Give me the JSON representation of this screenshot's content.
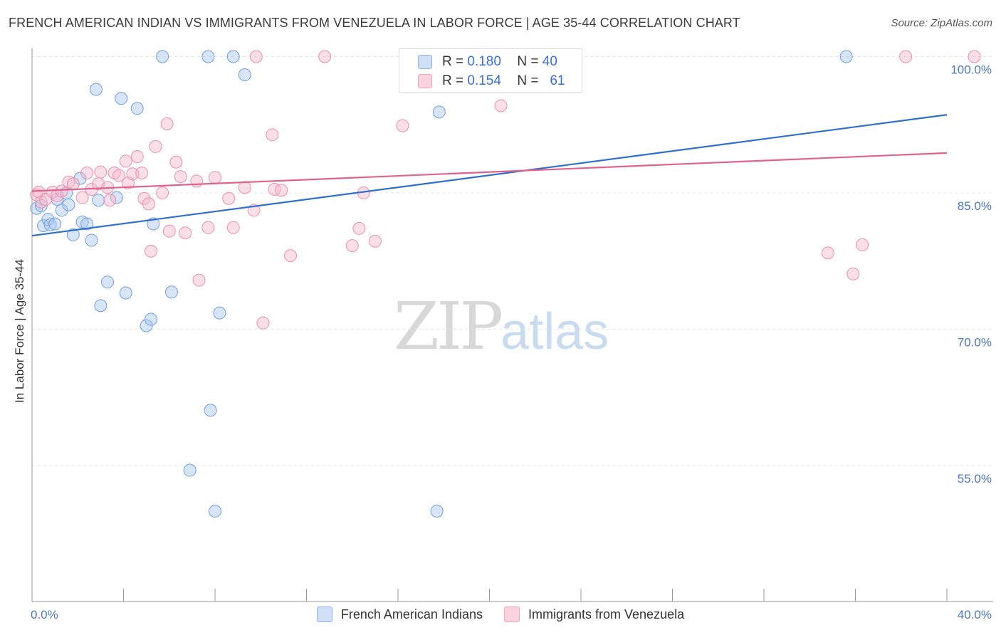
{
  "title": "FRENCH AMERICAN INDIAN VS IMMIGRANTS FROM VENEZUELA IN LABOR FORCE | AGE 35-44 CORRELATION CHART",
  "source": "Source: ZipAtlas.com",
  "watermark": {
    "zip": "ZIP",
    "atlas": "atlas"
  },
  "legend": {
    "rows": [
      {
        "r_label": "R =",
        "r_value": "0.180",
        "n_label": "N =",
        "n_value": "40",
        "color": "#a9c6ee"
      },
      {
        "r_label": "R =",
        "r_value": "0.154",
        "n_label": "N =",
        "n_value": "61",
        "color": "#f6b8cb"
      }
    ]
  },
  "chart_data": {
    "type": "scatter",
    "title": "FRENCH AMERICAN INDIAN VS IMMIGRANTS FROM VENEZUELA IN LABOR FORCE | AGE 35-44 CORRELATION CHART",
    "xlabel": "",
    "ylabel": "In Labor Force | Age 35-44",
    "xlim": [
      0,
      40
    ],
    "ylim": [
      40,
      101.5
    ],
    "x_tick_labels": [
      "0.0%",
      "40.0%"
    ],
    "y_ticks": [
      55,
      70,
      85,
      100
    ],
    "y_tick_labels": [
      "55.0%",
      "70.0%",
      "85.0%",
      "100.0%"
    ],
    "grid": true,
    "series": [
      {
        "name": "French American Indians",
        "color": "#a9c6ee",
        "stroke": "#6f9ee0",
        "line_color": "#2f6fd1",
        "trend": [
          [
            0,
            80.3
          ],
          [
            40,
            93.6
          ]
        ],
        "points": [
          [
            0.2,
            83.3
          ],
          [
            0.4,
            83.6
          ],
          [
            0.5,
            81.4
          ],
          [
            0.7,
            82.1
          ],
          [
            0.8,
            81.5
          ],
          [
            1.0,
            81.6
          ],
          [
            1.1,
            84.3
          ],
          [
            1.3,
            83.1
          ],
          [
            1.5,
            85.0
          ],
          [
            1.6,
            83.7
          ],
          [
            1.8,
            80.4
          ],
          [
            2.1,
            86.6
          ],
          [
            2.2,
            81.8
          ],
          [
            2.4,
            81.6
          ],
          [
            2.6,
            79.8
          ],
          [
            2.8,
            96.4
          ],
          [
            2.9,
            84.2
          ],
          [
            3.0,
            72.6
          ],
          [
            3.3,
            75.2
          ],
          [
            3.7,
            84.5
          ],
          [
            3.9,
            95.4
          ],
          [
            4.1,
            74.0
          ],
          [
            4.6,
            94.3
          ],
          [
            5.0,
            70.4
          ],
          [
            5.2,
            71.1
          ],
          [
            5.3,
            81.6
          ],
          [
            5.7,
            100.0
          ],
          [
            6.1,
            74.1
          ],
          [
            6.9,
            54.5
          ],
          [
            7.7,
            100.0
          ],
          [
            7.8,
            61.1
          ],
          [
            8.0,
            50.0
          ],
          [
            8.2,
            71.8
          ],
          [
            8.8,
            100.0
          ],
          [
            9.3,
            98.0
          ],
          [
            16.9,
            100.0
          ],
          [
            17.8,
            93.9
          ],
          [
            17.7,
            50.0
          ],
          [
            19.5,
            97.4
          ],
          [
            35.6,
            100.0
          ]
        ]
      },
      {
        "name": "Immigrants from Venezuela",
        "color": "#f6b8cb",
        "stroke": "#ea8fae",
        "line_color": "#e0628e",
        "trend": [
          [
            0,
            85.2
          ],
          [
            40,
            89.4
          ]
        ],
        "points": [
          [
            0.2,
            84.8
          ],
          [
            0.3,
            85.1
          ],
          [
            0.4,
            84.0
          ],
          [
            0.6,
            84.3
          ],
          [
            0.9,
            85.1
          ],
          [
            1.1,
            84.7
          ],
          [
            1.3,
            85.2
          ],
          [
            1.6,
            86.2
          ],
          [
            1.8,
            86.0
          ],
          [
            2.2,
            84.5
          ],
          [
            2.4,
            87.2
          ],
          [
            2.6,
            85.4
          ],
          [
            2.9,
            86.0
          ],
          [
            3.0,
            87.3
          ],
          [
            3.3,
            85.6
          ],
          [
            3.4,
            84.2
          ],
          [
            3.6,
            87.2
          ],
          [
            3.8,
            86.9
          ],
          [
            4.1,
            88.5
          ],
          [
            4.2,
            86.1
          ],
          [
            4.4,
            87.1
          ],
          [
            4.6,
            89.0
          ],
          [
            4.8,
            87.2
          ],
          [
            4.9,
            84.4
          ],
          [
            5.1,
            83.8
          ],
          [
            5.2,
            78.6
          ],
          [
            5.4,
            90.1
          ],
          [
            5.7,
            85.0
          ],
          [
            5.9,
            92.6
          ],
          [
            6.0,
            80.8
          ],
          [
            6.3,
            88.4
          ],
          [
            6.5,
            86.8
          ],
          [
            6.7,
            80.6
          ],
          [
            7.2,
            86.3
          ],
          [
            7.3,
            75.4
          ],
          [
            7.7,
            81.2
          ],
          [
            8.0,
            86.7
          ],
          [
            8.6,
            84.4
          ],
          [
            8.8,
            81.2
          ],
          [
            9.3,
            85.6
          ],
          [
            9.7,
            83.1
          ],
          [
            9.8,
            100.0
          ],
          [
            10.1,
            70.7
          ],
          [
            10.5,
            91.4
          ],
          [
            10.6,
            85.4
          ],
          [
            10.9,
            85.3
          ],
          [
            11.3,
            78.1
          ],
          [
            12.8,
            100.0
          ],
          [
            14.0,
            79.2
          ],
          [
            14.3,
            81.1
          ],
          [
            14.5,
            85.0
          ],
          [
            15.0,
            79.7
          ],
          [
            16.2,
            92.4
          ],
          [
            17.6,
            100.0
          ],
          [
            20.5,
            94.6
          ],
          [
            21.6,
            100.0
          ],
          [
            34.8,
            78.4
          ],
          [
            35.9,
            76.1
          ],
          [
            36.3,
            79.3
          ],
          [
            38.2,
            100.0
          ],
          [
            41.2,
            100.0
          ]
        ]
      }
    ]
  }
}
